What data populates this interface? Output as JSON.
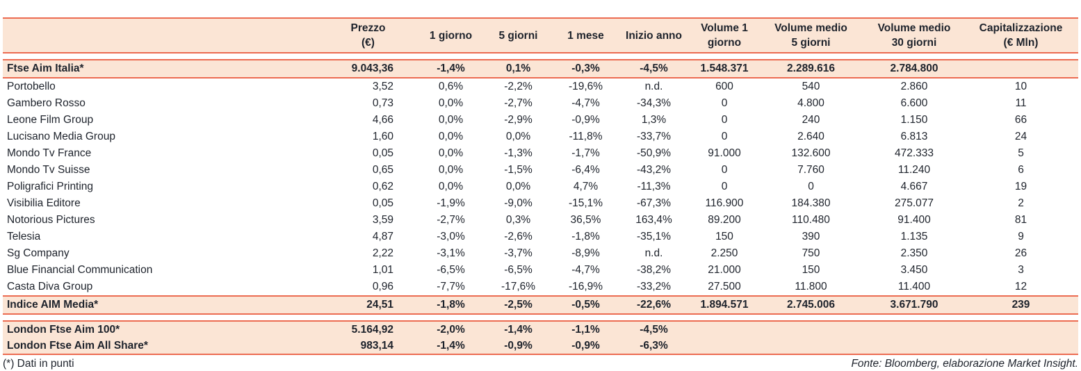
{
  "colors": {
    "accent_rule": "#ec6b51",
    "band_background": "#fbe5d5",
    "text": "#1d222b"
  },
  "table": {
    "columns": [
      {
        "id": "name",
        "header": [
          ""
        ],
        "align": "left"
      },
      {
        "id": "prezzo",
        "header": [
          "Prezzo",
          "(€)"
        ],
        "align": "right"
      },
      {
        "id": "d1",
        "header": [
          "1 giorno"
        ],
        "align": "center"
      },
      {
        "id": "d5",
        "header": [
          "5 giorni"
        ],
        "align": "center"
      },
      {
        "id": "m1",
        "header": [
          "1 mese"
        ],
        "align": "center"
      },
      {
        "id": "ytd",
        "header": [
          "Inizio anno"
        ],
        "align": "center"
      },
      {
        "id": "vol1",
        "header": [
          "Volume 1",
          "giorno"
        ],
        "align": "center"
      },
      {
        "id": "volm5",
        "header": [
          "Volume medio",
          "5 giorni"
        ],
        "align": "center"
      },
      {
        "id": "volm30",
        "header": [
          "Volume medio",
          "30 giorni"
        ],
        "align": "center"
      },
      {
        "id": "cap",
        "header": [
          "Capitalizzazione",
          "(€ Mln)"
        ],
        "align": "center"
      }
    ],
    "index_row_top": {
      "name": "Ftse Aim Italia*",
      "cells": [
        "9.043,36",
        "-1,4%",
        "0,1%",
        "-0,3%",
        "-4,5%",
        "1.548.371",
        "2.289.616",
        "2.784.800",
        ""
      ]
    },
    "stock_rows": [
      {
        "name": "Portobello",
        "cells": [
          "3,52",
          "0,6%",
          "-2,2%",
          "-19,6%",
          "n.d.",
          "600",
          "540",
          "2.860",
          "10"
        ]
      },
      {
        "name": "Gambero Rosso",
        "cells": [
          "0,73",
          "0,0%",
          "-2,7%",
          "-4,7%",
          "-34,3%",
          "0",
          "4.800",
          "6.600",
          "11"
        ]
      },
      {
        "name": "Leone Film Group",
        "cells": [
          "4,66",
          "0,0%",
          "-2,9%",
          "-0,9%",
          "1,3%",
          "0",
          "240",
          "1.150",
          "66"
        ]
      },
      {
        "name": "Lucisano Media Group",
        "cells": [
          "1,60",
          "0,0%",
          "0,0%",
          "-11,8%",
          "-33,7%",
          "0",
          "2.640",
          "6.813",
          "24"
        ]
      },
      {
        "name": "Mondo Tv France",
        "cells": [
          "0,05",
          "0,0%",
          "-1,3%",
          "-1,7%",
          "-50,9%",
          "91.000",
          "132.600",
          "472.333",
          "5"
        ]
      },
      {
        "name": "Mondo Tv Suisse",
        "cells": [
          "0,65",
          "0,0%",
          "-1,5%",
          "-6,4%",
          "-43,2%",
          "0",
          "7.760",
          "11.240",
          "6"
        ]
      },
      {
        "name": "Poligrafici Printing",
        "cells": [
          "0,62",
          "0,0%",
          "0,0%",
          "4,7%",
          "-11,3%",
          "0",
          "0",
          "4.667",
          "19"
        ]
      },
      {
        "name": "Visibilia Editore",
        "cells": [
          "0,05",
          "-1,9%",
          "-9,0%",
          "-15,1%",
          "-67,3%",
          "116.900",
          "184.380",
          "275.077",
          "2"
        ]
      },
      {
        "name": "Notorious Pictures",
        "cells": [
          "3,59",
          "-2,7%",
          "0,3%",
          "36,5%",
          "163,4%",
          "89.200",
          "110.480",
          "91.400",
          "81"
        ]
      },
      {
        "name": "Telesia",
        "cells": [
          "4,87",
          "-3,0%",
          "-2,6%",
          "-1,8%",
          "-35,1%",
          "150",
          "390",
          "1.135",
          "9"
        ]
      },
      {
        "name": "Sg Company",
        "cells": [
          "2,22",
          "-3,1%",
          "-3,7%",
          "-8,9%",
          "n.d.",
          "2.250",
          "750",
          "2.350",
          "26"
        ]
      },
      {
        "name": "Blue Financial Communication",
        "cells": [
          "1,01",
          "-6,5%",
          "-6,5%",
          "-4,7%",
          "-38,2%",
          "21.000",
          "150",
          "3.450",
          "3"
        ]
      },
      {
        "name": "Casta Diva Group",
        "cells": [
          "0,96",
          "-7,7%",
          "-17,6%",
          "-16,9%",
          "-33,2%",
          "27.500",
          "11.800",
          "11.400",
          "12"
        ]
      }
    ],
    "index_row_media": {
      "name": "Indice AIM Media*",
      "cells": [
        "24,51",
        "-1,8%",
        "-2,5%",
        "-0,5%",
        "-22,6%",
        "1.894.571",
        "2.745.006",
        "3.671.790",
        "239"
      ]
    },
    "london_rows": [
      {
        "name": "London Ftse Aim 100*",
        "cells": [
          "5.164,92",
          "-2,0%",
          "-1,4%",
          "-1,1%",
          "-4,5%",
          "",
          "",
          "",
          ""
        ]
      },
      {
        "name": "London Ftse Aim All Share*",
        "cells": [
          "983,14",
          "-1,4%",
          "-0,9%",
          "-0,9%",
          "-6,3%",
          "",
          "",
          "",
          ""
        ]
      }
    ]
  },
  "footnote": "(*) Dati in punti",
  "source": "Fonte: Bloomberg, elaborazione Market Insight."
}
